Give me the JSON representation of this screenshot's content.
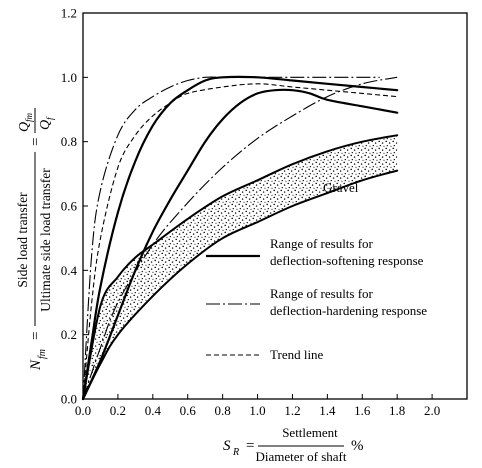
{
  "chart_data": {
    "type": "line",
    "title": "",
    "xlim": [
      0,
      2.2
    ],
    "ylim": [
      0,
      1.2
    ],
    "x_ticks": [
      "0.0",
      "0.2",
      "0.4",
      "0.6",
      "0.8",
      "1.0",
      "1.2",
      "1.4",
      "1.6",
      "1.8",
      "2.0"
    ],
    "y_ticks": [
      "0.0",
      "0.2",
      "0.4",
      "0.6",
      "0.8",
      "1.0",
      "1.2"
    ],
    "grid": false,
    "xlabel": {
      "symbol": "S",
      "subscript": "R",
      "eq": "=",
      "numerator": "Settlement",
      "denominator": "Diameter of shaft",
      "unit": "%"
    },
    "ylabel": {
      "symbol": "N",
      "subscript": "fm",
      "eq1": "=",
      "numerator": "Side load transfer",
      "denominator": "Ultimate side load transfer",
      "eq2": "=",
      "q_num": "Q",
      "q_num_sub": "fm",
      "q_den": "Q",
      "q_den_sub": "f"
    },
    "legend": {
      "position": "right-middle",
      "items": [
        {
          "style": "solid",
          "line1": "Range of results for",
          "line2": "deflection-softening response"
        },
        {
          "style": "dash-dot",
          "line1": "Range of results for",
          "line2": "deflection-hardening response"
        },
        {
          "style": "dashed",
          "line1": "Trend line",
          "line2": ""
        }
      ]
    },
    "annotations": [
      {
        "text": "Gravel",
        "x": 1.5,
        "y": 0.7
      }
    ],
    "series": [
      {
        "style": "solid",
        "x": [
          0,
          0.05,
          0.1,
          0.2,
          0.3,
          0.4,
          0.5,
          0.6,
          0.7,
          0.8,
          1.0,
          1.2,
          1.4,
          1.6,
          1.8
        ],
        "y": [
          0,
          0.18,
          0.35,
          0.58,
          0.74,
          0.85,
          0.92,
          0.96,
          0.99,
          1.0,
          1.0,
          0.99,
          0.98,
          0.97,
          0.96
        ]
      },
      {
        "style": "solid",
        "x": [
          0,
          0.1,
          0.2,
          0.3,
          0.4,
          0.5,
          0.6,
          0.7,
          0.8,
          0.9,
          1.0,
          1.1,
          1.2,
          1.3,
          1.4,
          1.6,
          1.8
        ],
        "y": [
          0,
          0.12,
          0.26,
          0.4,
          0.52,
          0.62,
          0.71,
          0.8,
          0.87,
          0.92,
          0.95,
          0.96,
          0.96,
          0.95,
          0.93,
          0.91,
          0.89
        ]
      },
      {
        "style": "dash-dot",
        "x": [
          0,
          0.05,
          0.1,
          0.2,
          0.3,
          0.4,
          0.5,
          0.6,
          0.7,
          0.8,
          1.0,
          1.2,
          1.4,
          1.6,
          1.7
        ],
        "y": [
          0,
          0.45,
          0.65,
          0.82,
          0.9,
          0.94,
          0.97,
          0.99,
          1.0,
          1.0,
          1.0,
          1.0,
          1.0,
          1.0,
          1.0
        ]
      },
      {
        "style": "dash-dot",
        "x": [
          0,
          0.1,
          0.2,
          0.4,
          0.6,
          0.8,
          1.0,
          1.2,
          1.4,
          1.6,
          1.8
        ],
        "y": [
          0,
          0.16,
          0.3,
          0.48,
          0.61,
          0.72,
          0.81,
          0.88,
          0.94,
          0.98,
          1.0
        ]
      },
      {
        "style": "dashed",
        "x": [
          0,
          0.05,
          0.1,
          0.2,
          0.3,
          0.4,
          0.5,
          0.6,
          0.8,
          1.0,
          1.2,
          1.4,
          1.6,
          1.8
        ],
        "y": [
          0,
          0.3,
          0.5,
          0.72,
          0.82,
          0.88,
          0.92,
          0.95,
          0.97,
          0.98,
          0.97,
          0.96,
          0.95,
          0.94
        ]
      },
      {
        "style": "band_upper",
        "x": [
          0,
          0.1,
          0.2,
          0.3,
          0.4,
          0.6,
          0.8,
          1.0,
          1.2,
          1.4,
          1.6,
          1.8
        ],
        "y": [
          0,
          0.29,
          0.38,
          0.44,
          0.48,
          0.56,
          0.63,
          0.68,
          0.73,
          0.77,
          0.8,
          0.82
        ]
      },
      {
        "style": "band_lower",
        "x": [
          0,
          0.1,
          0.2,
          0.4,
          0.6,
          0.8,
          1.0,
          1.2,
          1.4,
          1.6,
          1.8
        ],
        "y": [
          0,
          0.11,
          0.2,
          0.32,
          0.42,
          0.5,
          0.55,
          0.6,
          0.64,
          0.68,
          0.71
        ]
      }
    ]
  }
}
